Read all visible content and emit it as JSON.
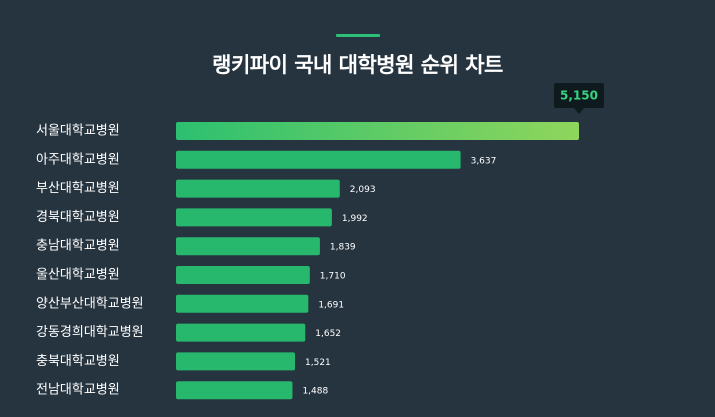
{
  "header": {
    "title": "랭키파이 국내 대학병원 순위 차트"
  },
  "colors": {
    "background": "#263440",
    "bar": "#27b86e",
    "top_bar_start": "#2cc070",
    "top_bar_end": "#8fd65c",
    "accent": "#2dbe78",
    "tooltip_bg": "#0f1a1f",
    "tooltip_text": "#36d47f"
  },
  "chart_data": {
    "type": "bar",
    "orientation": "horizontal",
    "title": "랭키파이 국내 대학병원 순위 차트",
    "categories": [
      "서울대학교병원",
      "아주대학교병원",
      "부산대학교병원",
      "경북대학교병원",
      "충남대학교병원",
      "울산대학교병원",
      "양산부산대학교병원",
      "강동경희대학교병원",
      "충북대학교병원",
      "전남대학교병원"
    ],
    "values": [
      5150,
      3637,
      2093,
      1992,
      1839,
      1710,
      1691,
      1652,
      1521,
      1488
    ],
    "value_labels": [
      "5,150",
      "3,637",
      "2,093",
      "1,992",
      "1,839",
      "1,710",
      "1,691",
      "1,652",
      "1,521",
      "1,488"
    ],
    "highlight_index": 0,
    "grid": false,
    "xlim": [
      0,
      5150
    ]
  }
}
